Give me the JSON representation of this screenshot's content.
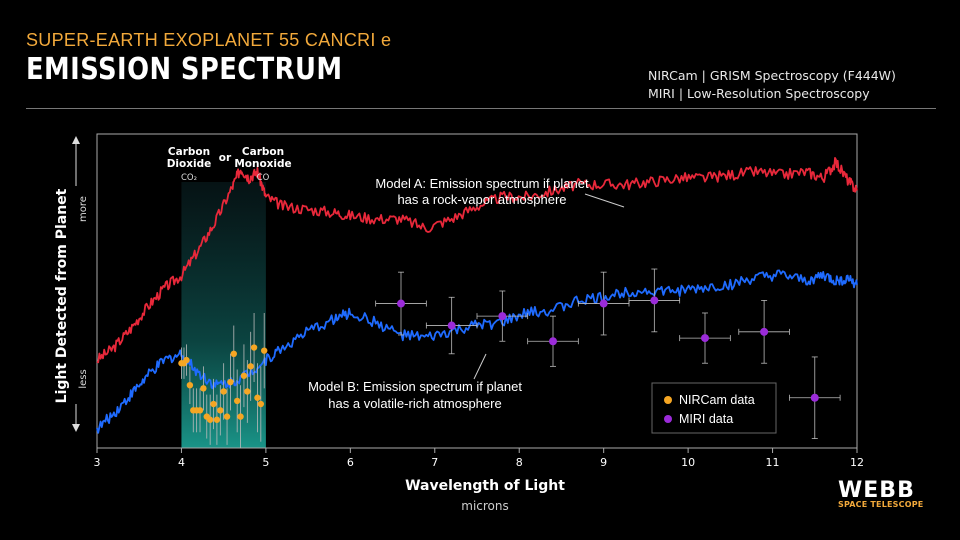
{
  "header": {
    "subtitle": "SUPER-EARTH EXOPLANET 55 CANCRI e",
    "title": "EMISSION SPECTRUM",
    "instrument_1": "NIRCam | GRISM Spectroscopy (F444W)",
    "instrument_2": "MIRI | Low-Resolution Spectroscopy"
  },
  "logo": {
    "name": "WEBB",
    "sub": "SPACE TELESCOPE"
  },
  "colors": {
    "model_a": "#e8283a",
    "model_b": "#1f6bff",
    "nircam": "#f5a623",
    "miri": "#9b2bd9",
    "band": "#1a8f86"
  },
  "chart_data": {
    "type": "line",
    "xlabel": "Wavelength of Light",
    "xlabel_sub": "microns",
    "ylabel": "Light Detected from Planet",
    "y_more": "more",
    "y_less": "less",
    "xlim": [
      3,
      12
    ],
    "ylim": [
      0,
      1
    ],
    "x_ticks": [
      "3",
      "4",
      "5",
      "6",
      "7",
      "8",
      "9",
      "10",
      "11",
      "12"
    ],
    "band": {
      "x_start": 4.0,
      "x_end": 5.0,
      "label_left_1": "Carbon",
      "label_left_2": "Dioxide",
      "label_left_3": "CO₂",
      "label_or": "or",
      "label_right_1": "Carbon",
      "label_right_2": "Monoxide",
      "label_right_3": "CO"
    },
    "series": [
      {
        "name": "Model A: Emission spectrum if planet has a rock-vapor atmosphere",
        "label_1": "Model A: Emission spectrum if planet",
        "label_2": "has a rock-vapor atmosphere",
        "x": [
          3.0,
          3.2,
          3.4,
          3.6,
          3.8,
          4.0,
          4.2,
          4.4,
          4.6,
          4.7,
          4.8,
          4.9,
          5.0,
          5.2,
          5.5,
          5.8,
          6.0,
          6.3,
          6.6,
          6.9,
          7.2,
          7.5,
          7.8,
          8.1,
          8.4,
          8.7,
          9.0,
          9.3,
          9.6,
          9.9,
          10.2,
          10.5,
          10.8,
          11.1,
          11.4,
          11.6,
          11.75,
          11.9,
          12.0
        ],
        "values": [
          0.28,
          0.32,
          0.38,
          0.45,
          0.51,
          0.55,
          0.63,
          0.72,
          0.83,
          0.89,
          0.86,
          0.88,
          0.8,
          0.77,
          0.76,
          0.75,
          0.74,
          0.73,
          0.73,
          0.7,
          0.73,
          0.77,
          0.8,
          0.8,
          0.82,
          0.84,
          0.84,
          0.84,
          0.85,
          0.86,
          0.86,
          0.87,
          0.88,
          0.87,
          0.88,
          0.86,
          0.91,
          0.85,
          0.82
        ]
      },
      {
        "name": "Model B: Emission spectrum if planet has a volatile-rich atmosphere",
        "label_1": "Model B: Emission spectrum if planet",
        "label_2": "has a volatile-rich atmosphere",
        "x": [
          3.0,
          3.2,
          3.4,
          3.6,
          3.8,
          4.0,
          4.2,
          4.4,
          4.6,
          4.8,
          5.0,
          5.2,
          5.5,
          5.8,
          6.0,
          6.3,
          6.6,
          6.9,
          7.2,
          7.5,
          7.8,
          8.1,
          8.4,
          8.7,
          9.0,
          9.3,
          9.6,
          9.9,
          10.2,
          10.5,
          10.8,
          11.1,
          11.4,
          11.6,
          11.75,
          11.9,
          12.0
        ],
        "values": [
          0.06,
          0.11,
          0.17,
          0.23,
          0.28,
          0.3,
          0.24,
          0.2,
          0.21,
          0.24,
          0.28,
          0.32,
          0.37,
          0.41,
          0.43,
          0.4,
          0.36,
          0.35,
          0.37,
          0.39,
          0.4,
          0.43,
          0.44,
          0.47,
          0.48,
          0.5,
          0.5,
          0.5,
          0.51,
          0.52,
          0.54,
          0.55,
          0.53,
          0.55,
          0.53,
          0.54,
          0.52
        ]
      }
    ],
    "nircam": {
      "name": "NIRCam data",
      "x": [
        4.0,
        4.03,
        4.06,
        4.1,
        4.14,
        4.18,
        4.22,
        4.26,
        4.3,
        4.34,
        4.38,
        4.42,
        4.46,
        4.5,
        4.54,
        4.58,
        4.62,
        4.66,
        4.7,
        4.74,
        4.78,
        4.82,
        4.86,
        4.9,
        4.94,
        4.98
      ],
      "y": [
        0.27,
        0.27,
        0.28,
        0.2,
        0.12,
        0.12,
        0.12,
        0.19,
        0.1,
        0.09,
        0.14,
        0.09,
        0.12,
        0.18,
        0.1,
        0.21,
        0.3,
        0.15,
        0.1,
        0.23,
        0.18,
        0.26,
        0.32,
        0.16,
        0.14,
        0.31
      ],
      "err": [
        0.05,
        0.05,
        0.05,
        0.06,
        0.07,
        0.07,
        0.07,
        0.07,
        0.07,
        0.08,
        0.08,
        0.08,
        0.08,
        0.09,
        0.09,
        0.09,
        0.09,
        0.1,
        0.1,
        0.1,
        0.1,
        0.11,
        0.11,
        0.11,
        0.12,
        0.12
      ]
    },
    "miri": {
      "name": "MIRI data",
      "x": [
        6.6,
        7.2,
        7.8,
        8.4,
        9.0,
        9.6,
        10.2,
        10.9,
        11.5
      ],
      "y": [
        0.46,
        0.39,
        0.42,
        0.34,
        0.46,
        0.47,
        0.35,
        0.37,
        0.16
      ],
      "xerr": [
        0.3,
        0.3,
        0.3,
        0.3,
        0.3,
        0.3,
        0.3,
        0.3,
        0.3
      ],
      "yerr": [
        0.1,
        0.09,
        0.08,
        0.08,
        0.1,
        0.1,
        0.08,
        0.1,
        0.13
      ]
    },
    "legend_position": "bottom-right",
    "grid": false
  }
}
